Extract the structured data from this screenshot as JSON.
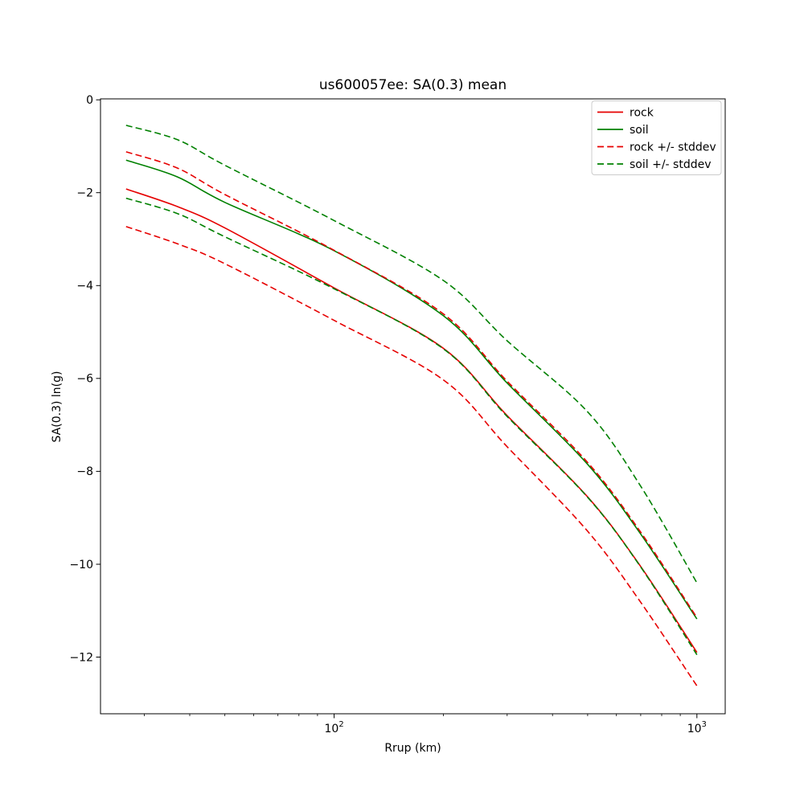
{
  "chart_data": {
    "type": "line",
    "title": "us600057ee: SA(0.3) mean",
    "xlabel": "Rrup (km)",
    "ylabel": "SA(0.3) ln(g)",
    "xscale": "log",
    "grid": false,
    "xlim": [
      22.7,
      1197
    ],
    "ylim": [
      -13.22,
      0.02
    ],
    "x_km": [
      26.7,
      37,
      50,
      100,
      200,
      300,
      500,
      700,
      1000
    ],
    "series": [
      {
        "name": "rock",
        "label": "rock",
        "color": "#e60000",
        "style": "solid",
        "values": [
          -1.92,
          -2.3,
          -2.76,
          -4.05,
          -5.35,
          -6.8,
          -8.55,
          -10.05,
          -11.9
        ]
      },
      {
        "name": "soil",
        "label": "soil",
        "color": "#008000",
        "style": "solid",
        "values": [
          -1.3,
          -1.66,
          -2.21,
          -3.25,
          -4.65,
          -6.1,
          -7.85,
          -9.35,
          -11.18
        ]
      },
      {
        "name": "rock_plus_stddev",
        "label": "rock + stddev",
        "color": "#e60000",
        "style": "dashed",
        "values": [
          -1.12,
          -1.47,
          -2.04,
          -3.24,
          -4.61,
          -6.06,
          -7.81,
          -9.31,
          -11.15
        ]
      },
      {
        "name": "rock_minus_stddev",
        "label": "rock - stddev",
        "color": "#e60000",
        "style": "dashed",
        "values": [
          -2.73,
          -3.1,
          -3.53,
          -4.75,
          -6.03,
          -7.47,
          -9.29,
          -10.82,
          -12.62
        ]
      },
      {
        "name": "soil_plus_stddev",
        "label": "soil + stddev",
        "color": "#008000",
        "style": "dashed",
        "values": [
          -0.55,
          -0.86,
          -1.41,
          -2.6,
          -3.89,
          -5.19,
          -6.72,
          -8.32,
          -10.4
        ]
      },
      {
        "name": "soil_minus_stddev",
        "label": "soil - stddev",
        "color": "#008000",
        "style": "dashed",
        "values": [
          -2.12,
          -2.45,
          -2.95,
          -4.07,
          -5.36,
          -6.82,
          -8.56,
          -10.06,
          -11.95
        ]
      }
    ],
    "legend": {
      "position": "upper right",
      "entries": [
        {
          "label": "rock",
          "color": "#e60000",
          "dash": false
        },
        {
          "label": "soil",
          "color": "#008000",
          "dash": false
        },
        {
          "label": "rock +/- stddev",
          "color": "#e60000",
          "dash": true
        },
        {
          "label": "soil +/- stddev",
          "color": "#008000",
          "dash": true
        }
      ]
    },
    "y_ticks": [
      {
        "label": "0",
        "value": 0
      },
      {
        "label": "−2",
        "value": -2
      },
      {
        "label": "−4",
        "value": -4
      },
      {
        "label": "−6",
        "value": -6
      },
      {
        "label": "−8",
        "value": -8
      },
      {
        "label": "−10",
        "value": -10
      },
      {
        "label": "−12",
        "value": -12
      }
    ],
    "x_ticks_major": [
      {
        "base": "10",
        "exp": "2",
        "value": 100
      },
      {
        "base": "10",
        "exp": "3",
        "value": 1000
      }
    ],
    "x_ticks_minor": [
      30,
      40,
      50,
      60,
      70,
      80,
      90,
      200,
      300,
      400,
      500,
      600,
      700,
      800,
      900
    ]
  }
}
